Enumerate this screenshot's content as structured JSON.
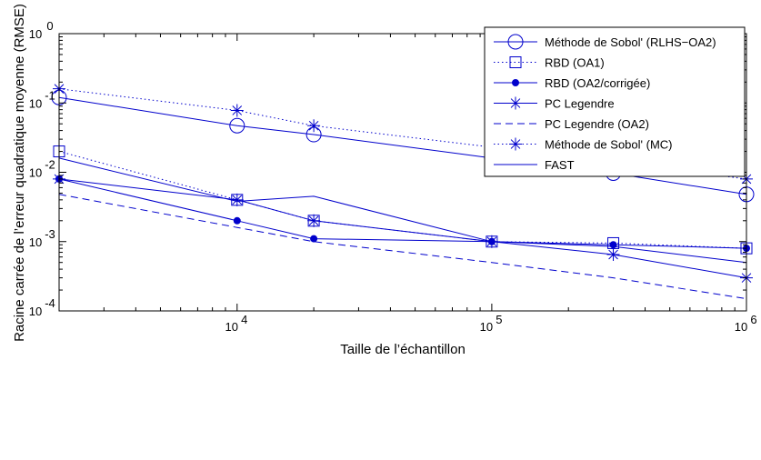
{
  "chart_data": {
    "type": "line",
    "xlabel": "Taille de l’échantillon",
    "ylabel": "Racine carrée de l’erreur quadratique moyenne (RMSE)",
    "xscale": "log",
    "yscale": "log",
    "xlim": [
      2000,
      1000000
    ],
    "ylim": [
      0.0001,
      1
    ],
    "grid": false,
    "legend_position": "top-right",
    "x_ticks": [
      {
        "mantissa": "10",
        "exp": "4",
        "value": 10000
      },
      {
        "mantissa": "10",
        "exp": "5",
        "value": 100000
      },
      {
        "mantissa": "10",
        "exp": "6",
        "value": 1000000
      }
    ],
    "y_ticks": [
      {
        "mantissa": "10",
        "exp": "0",
        "value": 1
      },
      {
        "mantissa": "10",
        "exp": "-1",
        "value": 0.1
      },
      {
        "mantissa": "10",
        "exp": "-2",
        "value": 0.01
      },
      {
        "mantissa": "10",
        "exp": "-3",
        "value": 0.001
      },
      {
        "mantissa": "10",
        "exp": "-4",
        "value": 0.0001
      }
    ],
    "color": "#0000cc",
    "series": [
      {
        "name": "Méthode de Sobol' (RLHS−OA2)",
        "line": "solid",
        "marker": "circle",
        "x": [
          2000,
          10000,
          20000,
          100000,
          300000,
          1000000
        ],
        "y": [
          0.12,
          0.047,
          0.035,
          0.016,
          0.0097,
          0.0048
        ]
      },
      {
        "name": "RBD (OA1)",
        "line": "dotted",
        "marker": "square",
        "x": [
          2000,
          10000,
          20000,
          100000,
          300000,
          1000000
        ],
        "y": [
          0.02,
          0.004,
          0.002,
          0.001,
          0.00095,
          0.0008
        ]
      },
      {
        "name": "RBD (OA2/corrigée)",
        "line": "solid",
        "marker": "dot",
        "x": [
          2000,
          10000,
          20000,
          100000,
          300000,
          1000000
        ],
        "y": [
          0.008,
          0.002,
          0.0011,
          0.001,
          0.0009,
          0.0008
        ]
      },
      {
        "name": "PC Legendre",
        "line": "solid",
        "marker": "star",
        "x": [
          2000,
          10000,
          20000,
          100000,
          300000,
          1000000
        ],
        "y": [
          0.008,
          0.004,
          0.002,
          0.001,
          0.00065,
          0.0003
        ]
      },
      {
        "name": "PC Legendre (OA2)",
        "line": "dashed",
        "marker": "none",
        "x": [
          2000,
          10000,
          20000,
          100000,
          300000,
          1000000
        ],
        "y": [
          0.0048,
          0.0016,
          0.001,
          0.0005,
          0.0003,
          0.00015
        ]
      },
      {
        "name": "Méthode de Sobol' (MC)",
        "line": "dotted",
        "marker": "star",
        "x": [
          2000,
          10000,
          20000,
          100000,
          300000,
          1000000
        ],
        "y": [
          0.16,
          0.078,
          0.047,
          0.023,
          0.014,
          0.008
        ]
      },
      {
        "name": "FAST",
        "line": "solid",
        "marker": "none",
        "x": [
          2000,
          10000,
          20000,
          100000,
          300000,
          1000000
        ],
        "y": [
          0.016,
          0.0038,
          0.0045,
          0.001,
          0.00085,
          0.0005
        ]
      }
    ]
  }
}
